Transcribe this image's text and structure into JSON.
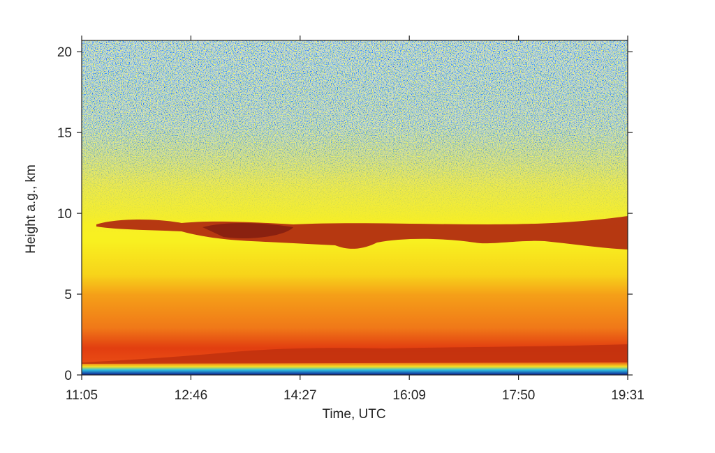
{
  "chart_data": {
    "type": "heatmap",
    "x_label": "Time, UTC",
    "y_label": "Height a.g., km",
    "xticks": [
      "11:05",
      "12:46",
      "14:27",
      "16:09",
      "17:50",
      "19:31"
    ],
    "ylim": [
      0,
      20.7
    ],
    "yticks": [
      0,
      5,
      10,
      15,
      20
    ]
  }
}
